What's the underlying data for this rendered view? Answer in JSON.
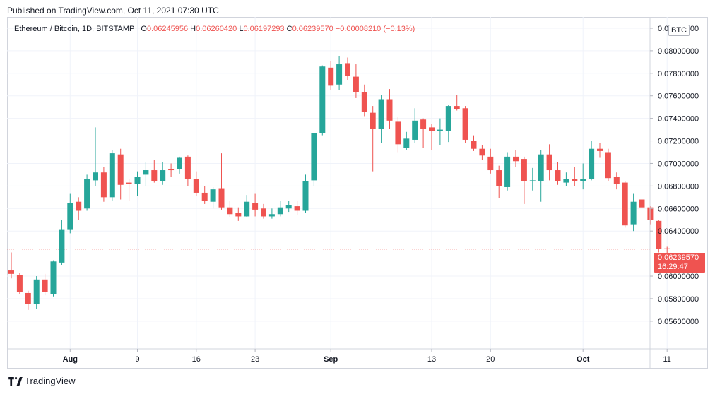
{
  "header": {
    "published": "Published on TradingView.com, Oct 11, 2021 07:30 UTC"
  },
  "legend": {
    "symbol": "Ethereum / Bitcoin, 1D, BITSTAMP",
    "o_label": "O",
    "o_value": "0.06245956",
    "h_label": "H",
    "h_value": "0.06260420",
    "l_label": "L",
    "l_value": "0.06197293",
    "c_label": "C",
    "c_value": "0.06239570",
    "change": "−0.00008210 (−0.13%)"
  },
  "currency_badge": "BTC",
  "last_price": {
    "value": "0.06239570",
    "countdown": "16:29:47"
  },
  "footer": {
    "brand": "TradingView"
  },
  "colors": {
    "up": "#26a69a",
    "down": "#ef5350",
    "grid": "#f0f3fa",
    "axis_text": "#131722"
  },
  "chart_data": {
    "type": "candlestick",
    "title": "Ethereum / Bitcoin, 1D, BITSTAMP",
    "yaxis_ticks": [
      "0.08200000",
      "0.08000000",
      "0.07800000",
      "0.07600000",
      "0.07400000",
      "0.07200000",
      "0.07000000",
      "0.06800000",
      "0.06600000",
      "0.06400000",
      "0.06000000",
      "0.05800000",
      "0.05600000"
    ],
    "xaxis_ticks": [
      {
        "label": "Aug",
        "date": "2021-08-01"
      },
      {
        "label": "9",
        "date": "2021-08-09"
      },
      {
        "label": "16",
        "date": "2021-08-16"
      },
      {
        "label": "23",
        "date": "2021-08-23"
      },
      {
        "label": "Sep",
        "date": "2021-09-01"
      },
      {
        "label": "13",
        "date": "2021-09-13"
      },
      {
        "label": "20",
        "date": "2021-09-20"
      },
      {
        "label": "Oct",
        "date": "2021-10-01"
      },
      {
        "label": "11",
        "date": "2021-10-11"
      }
    ],
    "ylim": [
      0.0548,
      0.0825
    ],
    "grid": true,
    "last_close": 0.0623957,
    "candles": [
      {
        "date": "2021-07-25",
        "o": 0.0605,
        "h": 0.0621,
        "l": 0.0598,
        "c": 0.0602
      },
      {
        "date": "2021-07-26",
        "o": 0.0601,
        "h": 0.0603,
        "l": 0.0584,
        "c": 0.0586
      },
      {
        "date": "2021-07-27",
        "o": 0.0585,
        "h": 0.0587,
        "l": 0.057,
        "c": 0.0575
      },
      {
        "date": "2021-07-28",
        "o": 0.0575,
        "h": 0.06,
        "l": 0.0571,
        "c": 0.0597
      },
      {
        "date": "2021-07-29",
        "o": 0.0597,
        "h": 0.0602,
        "l": 0.0583,
        "c": 0.0586
      },
      {
        "date": "2021-07-30",
        "o": 0.0584,
        "h": 0.0614,
        "l": 0.0582,
        "c": 0.0613
      },
      {
        "date": "2021-07-31",
        "o": 0.0612,
        "h": 0.065,
        "l": 0.061,
        "c": 0.0641
      },
      {
        "date": "2021-08-01",
        "o": 0.0641,
        "h": 0.0673,
        "l": 0.0638,
        "c": 0.0665
      },
      {
        "date": "2021-08-02",
        "o": 0.0666,
        "h": 0.067,
        "l": 0.065,
        "c": 0.0658
      },
      {
        "date": "2021-08-03",
        "o": 0.066,
        "h": 0.069,
        "l": 0.0658,
        "c": 0.0686
      },
      {
        "date": "2021-08-04",
        "o": 0.0685,
        "h": 0.0732,
        "l": 0.068,
        "c": 0.0692
      },
      {
        "date": "2021-08-05",
        "o": 0.0692,
        "h": 0.0697,
        "l": 0.0666,
        "c": 0.067
      },
      {
        "date": "2021-08-06",
        "o": 0.067,
        "h": 0.0712,
        "l": 0.0667,
        "c": 0.0709
      },
      {
        "date": "2021-08-07",
        "o": 0.0708,
        "h": 0.0713,
        "l": 0.0668,
        "c": 0.0681
      },
      {
        "date": "2021-08-08",
        "o": 0.0683,
        "h": 0.0686,
        "l": 0.0667,
        "c": 0.0682
      },
      {
        "date": "2021-08-09",
        "o": 0.0682,
        "h": 0.0693,
        "l": 0.0671,
        "c": 0.0688
      },
      {
        "date": "2021-08-10",
        "o": 0.069,
        "h": 0.0701,
        "l": 0.068,
        "c": 0.0694
      },
      {
        "date": "2021-08-11",
        "o": 0.0694,
        "h": 0.0703,
        "l": 0.0683,
        "c": 0.0684
      },
      {
        "date": "2021-08-12",
        "o": 0.0684,
        "h": 0.0701,
        "l": 0.0681,
        "c": 0.0694
      },
      {
        "date": "2021-08-13",
        "o": 0.0695,
        "h": 0.07,
        "l": 0.0688,
        "c": 0.0694
      },
      {
        "date": "2021-08-14",
        "o": 0.0695,
        "h": 0.0706,
        "l": 0.0691,
        "c": 0.0705
      },
      {
        "date": "2021-08-15",
        "o": 0.0706,
        "h": 0.0707,
        "l": 0.068,
        "c": 0.0686
      },
      {
        "date": "2021-08-16",
        "o": 0.0686,
        "h": 0.0693,
        "l": 0.0671,
        "c": 0.0674
      },
      {
        "date": "2021-08-17",
        "o": 0.0674,
        "h": 0.068,
        "l": 0.0664,
        "c": 0.0667
      },
      {
        "date": "2021-08-18",
        "o": 0.0666,
        "h": 0.0679,
        "l": 0.066,
        "c": 0.0677
      },
      {
        "date": "2021-08-19",
        "o": 0.0678,
        "h": 0.0709,
        "l": 0.0659,
        "c": 0.0661
      },
      {
        "date": "2021-08-20",
        "o": 0.0661,
        "h": 0.0667,
        "l": 0.0652,
        "c": 0.0655
      },
      {
        "date": "2021-08-21",
        "o": 0.0656,
        "h": 0.0661,
        "l": 0.0649,
        "c": 0.0653
      },
      {
        "date": "2021-08-22",
        "o": 0.0653,
        "h": 0.0672,
        "l": 0.0652,
        "c": 0.0666
      },
      {
        "date": "2021-08-23",
        "o": 0.0665,
        "h": 0.0673,
        "l": 0.0653,
        "c": 0.0659
      },
      {
        "date": "2021-08-24",
        "o": 0.066,
        "h": 0.0664,
        "l": 0.0651,
        "c": 0.0653
      },
      {
        "date": "2021-08-25",
        "o": 0.0653,
        "h": 0.066,
        "l": 0.0651,
        "c": 0.0655
      },
      {
        "date": "2021-08-26",
        "o": 0.0655,
        "h": 0.0667,
        "l": 0.0653,
        "c": 0.0661
      },
      {
        "date": "2021-08-27",
        "o": 0.066,
        "h": 0.0667,
        "l": 0.0657,
        "c": 0.0663
      },
      {
        "date": "2021-08-28",
        "o": 0.0662,
        "h": 0.0667,
        "l": 0.0654,
        "c": 0.0658
      },
      {
        "date": "2021-08-29",
        "o": 0.0658,
        "h": 0.069,
        "l": 0.0656,
        "c": 0.0684
      },
      {
        "date": "2021-08-30",
        "o": 0.0685,
        "h": 0.0727,
        "l": 0.068,
        "c": 0.0727
      },
      {
        "date": "2021-08-31",
        "o": 0.0727,
        "h": 0.0787,
        "l": 0.0725,
        "c": 0.0786
      },
      {
        "date": "2021-09-01",
        "o": 0.0785,
        "h": 0.0791,
        "l": 0.0765,
        "c": 0.0769
      },
      {
        "date": "2021-09-02",
        "o": 0.077,
        "h": 0.0795,
        "l": 0.0765,
        "c": 0.0788
      },
      {
        "date": "2021-09-03",
        "o": 0.0789,
        "h": 0.0794,
        "l": 0.0774,
        "c": 0.0778
      },
      {
        "date": "2021-09-04",
        "o": 0.0777,
        "h": 0.0788,
        "l": 0.0758,
        "c": 0.0763
      },
      {
        "date": "2021-09-05",
        "o": 0.0763,
        "h": 0.077,
        "l": 0.0742,
        "c": 0.0746
      },
      {
        "date": "2021-09-06",
        "o": 0.0745,
        "h": 0.0751,
        "l": 0.0693,
        "c": 0.0731
      },
      {
        "date": "2021-09-07",
        "o": 0.0731,
        "h": 0.0761,
        "l": 0.0718,
        "c": 0.0757
      },
      {
        "date": "2021-09-08",
        "o": 0.0757,
        "h": 0.0766,
        "l": 0.0731,
        "c": 0.0738
      },
      {
        "date": "2021-09-09",
        "o": 0.0737,
        "h": 0.0741,
        "l": 0.071,
        "c": 0.0717
      },
      {
        "date": "2021-09-10",
        "o": 0.0714,
        "h": 0.0728,
        "l": 0.0712,
        "c": 0.0722
      },
      {
        "date": "2021-09-11",
        "o": 0.0721,
        "h": 0.0749,
        "l": 0.0718,
        "c": 0.0738
      },
      {
        "date": "2021-09-12",
        "o": 0.0739,
        "h": 0.074,
        "l": 0.0714,
        "c": 0.0731
      },
      {
        "date": "2021-09-13",
        "o": 0.0732,
        "h": 0.0735,
        "l": 0.0712,
        "c": 0.0729
      },
      {
        "date": "2021-09-14",
        "o": 0.0729,
        "h": 0.074,
        "l": 0.0716,
        "c": 0.073
      },
      {
        "date": "2021-09-15",
        "o": 0.0729,
        "h": 0.0752,
        "l": 0.0719,
        "c": 0.0751
      },
      {
        "date": "2021-09-16",
        "o": 0.0751,
        "h": 0.0761,
        "l": 0.0747,
        "c": 0.0748
      },
      {
        "date": "2021-09-17",
        "o": 0.0749,
        "h": 0.0751,
        "l": 0.0718,
        "c": 0.0721
      },
      {
        "date": "2021-09-18",
        "o": 0.072,
        "h": 0.0725,
        "l": 0.0711,
        "c": 0.0713
      },
      {
        "date": "2021-09-19",
        "o": 0.0713,
        "h": 0.0716,
        "l": 0.0703,
        "c": 0.0707
      },
      {
        "date": "2021-09-20",
        "o": 0.0706,
        "h": 0.0713,
        "l": 0.0691,
        "c": 0.0694
      },
      {
        "date": "2021-09-21",
        "o": 0.0694,
        "h": 0.0698,
        "l": 0.0669,
        "c": 0.068
      },
      {
        "date": "2021-09-22",
        "o": 0.0679,
        "h": 0.071,
        "l": 0.0676,
        "c": 0.0706
      },
      {
        "date": "2021-09-23",
        "o": 0.0706,
        "h": 0.0712,
        "l": 0.0697,
        "c": 0.0702
      },
      {
        "date": "2021-09-24",
        "o": 0.0704,
        "h": 0.0706,
        "l": 0.0664,
        "c": 0.0684
      },
      {
        "date": "2021-09-25",
        "o": 0.0684,
        "h": 0.0696,
        "l": 0.0676,
        "c": 0.0685
      },
      {
        "date": "2021-09-26",
        "o": 0.0684,
        "h": 0.0712,
        "l": 0.0666,
        "c": 0.0708
      },
      {
        "date": "2021-09-27",
        "o": 0.0708,
        "h": 0.0717,
        "l": 0.0685,
        "c": 0.0694
      },
      {
        "date": "2021-09-28",
        "o": 0.0694,
        "h": 0.0701,
        "l": 0.0681,
        "c": 0.0684
      },
      {
        "date": "2021-09-29",
        "o": 0.0683,
        "h": 0.0692,
        "l": 0.068,
        "c": 0.0686
      },
      {
        "date": "2021-09-30",
        "o": 0.0686,
        "h": 0.0697,
        "l": 0.068,
        "c": 0.0684
      },
      {
        "date": "2021-10-01",
        "o": 0.0684,
        "h": 0.07,
        "l": 0.0677,
        "c": 0.0686
      },
      {
        "date": "2021-10-02",
        "o": 0.0686,
        "h": 0.072,
        "l": 0.0685,
        "c": 0.0713
      },
      {
        "date": "2021-10-03",
        "o": 0.0713,
        "h": 0.0718,
        "l": 0.0705,
        "c": 0.0711
      },
      {
        "date": "2021-10-04",
        "o": 0.071,
        "h": 0.0713,
        "l": 0.0684,
        "c": 0.0687
      },
      {
        "date": "2021-10-05",
        "o": 0.0688,
        "h": 0.0692,
        "l": 0.0677,
        "c": 0.0682
      },
      {
        "date": "2021-10-06",
        "o": 0.0683,
        "h": 0.0684,
        "l": 0.0643,
        "c": 0.0645
      },
      {
        "date": "2021-10-07",
        "o": 0.0646,
        "h": 0.0673,
        "l": 0.064,
        "c": 0.0666
      },
      {
        "date": "2021-10-08",
        "o": 0.0668,
        "h": 0.0669,
        "l": 0.0654,
        "c": 0.0661
      },
      {
        "date": "2021-10-09",
        "o": 0.0661,
        "h": 0.0662,
        "l": 0.0646,
        "c": 0.065
      },
      {
        "date": "2021-10-10",
        "o": 0.0649,
        "h": 0.065,
        "l": 0.0621,
        "c": 0.0624
      },
      {
        "date": "2021-10-11",
        "o": 0.06245956,
        "h": 0.0626042,
        "l": 0.06197293,
        "c": 0.0623957
      }
    ]
  }
}
